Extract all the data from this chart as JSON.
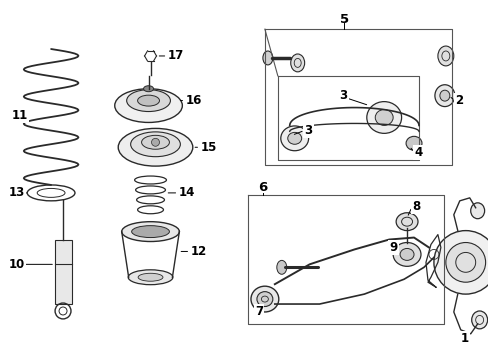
{
  "background_color": "#ffffff",
  "fig_width": 4.89,
  "fig_height": 3.6,
  "dpi": 100,
  "font_size": 8.5,
  "line_color": "#2a2a2a",
  "text_color": "#000000",
  "label_arrow_color": "#000000"
}
